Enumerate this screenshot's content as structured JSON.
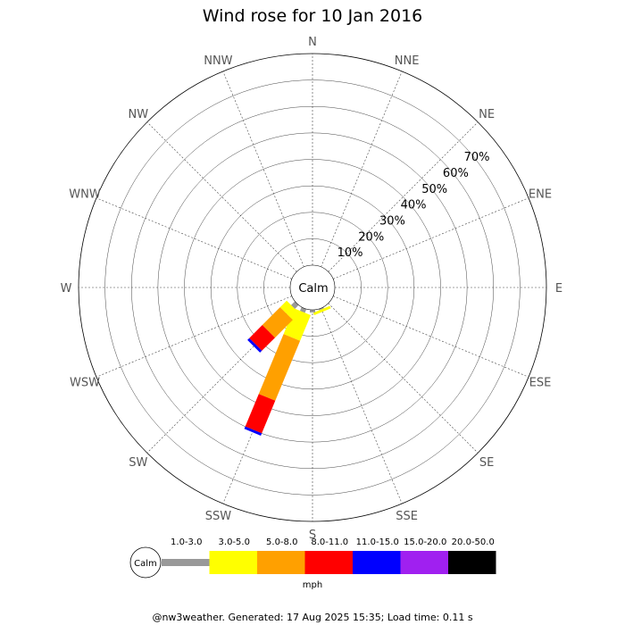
{
  "chart_data": {
    "type": "wind-rose",
    "title": "Wind rose for 10 Jan 2016",
    "center_label": "Calm",
    "directions": [
      "N",
      "NNE",
      "NE",
      "ENE",
      "E",
      "ESE",
      "SE",
      "SSE",
      "S",
      "SSW",
      "SW",
      "WSW",
      "W",
      "WNW",
      "NW",
      "NNW"
    ],
    "rings": [
      10,
      20,
      30,
      40,
      50,
      60,
      70
    ],
    "ring_labels": [
      "10%",
      "20%",
      "30%",
      "40%",
      "50%",
      "60%",
      "70%"
    ],
    "rmax": 80,
    "speed_bins": [
      {
        "label": "1.0-3.0",
        "color": "#999999"
      },
      {
        "label": "3.0-5.0",
        "color": "#ffff00"
      },
      {
        "label": "5.0-8.0",
        "color": "#ffa000"
      },
      {
        "label": "8.0-11.0",
        "color": "#ff0000"
      },
      {
        "label": "11.0-15.0",
        "color": "#0000ff"
      },
      {
        "label": "15.0-20.0",
        "color": "#a020f0"
      },
      {
        "label": "20.0-50.0",
        "color": "#000000"
      }
    ],
    "series": [
      {
        "direction": "SSE",
        "values": [
          0.5,
          1.0,
          0,
          0,
          0,
          0,
          0
        ]
      },
      {
        "direction": "S",
        "values": [
          1.0,
          0,
          0,
          0,
          0,
          0,
          0
        ]
      },
      {
        "direction": "SSW",
        "values": [
          1.5,
          10.5,
          24.5,
          13.3,
          1.0,
          0,
          0
        ]
      },
      {
        "direction": "SW",
        "values": [
          2.0,
          3.5,
          9.5,
          7.0,
          1.0,
          0,
          0
        ]
      }
    ],
    "legend_unit": "mph",
    "legend_calm": "Calm"
  },
  "footer": "@nw3weather. Generated: 17 Aug 2025 15:35; Load time: 0.11 s"
}
